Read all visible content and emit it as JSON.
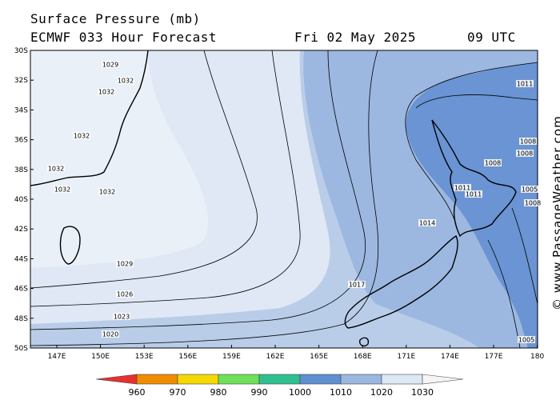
{
  "header": {
    "title": "Surface Pressure (mb)",
    "model": "ECMWF 033 Hour Forecast",
    "date": "Fri 02 May 2025",
    "time": "09 UTC"
  },
  "credit": "© www.PassageWeather.com",
  "axes": {
    "latitudes": [
      "30S",
      "32S",
      "34S",
      "36S",
      "38S",
      "40S",
      "42S",
      "44S",
      "46S",
      "48S",
      "50S"
    ],
    "longitudes": [
      "147E",
      "150E",
      "153E",
      "156E",
      "159E",
      "162E",
      "165E",
      "168E",
      "171E",
      "174E",
      "177E",
      "180"
    ]
  },
  "isobar_labels": [
    {
      "text": "1029",
      "id": "a"
    },
    {
      "text": "1032",
      "id": "b"
    },
    {
      "text": "1032",
      "id": "c"
    },
    {
      "text": "1032",
      "id": "d"
    },
    {
      "text": "1032",
      "id": "e"
    },
    {
      "text": "1032",
      "id": "f"
    },
    {
      "text": "1032",
      "id": "g"
    },
    {
      "text": "1029",
      "id": "h"
    },
    {
      "text": "1026",
      "id": "i"
    },
    {
      "text": "1023",
      "id": "j"
    },
    {
      "text": "1020",
      "id": "k"
    },
    {
      "text": "1011",
      "id": "l"
    },
    {
      "text": "1008",
      "id": "m"
    },
    {
      "text": "1008",
      "id": "n"
    },
    {
      "text": "1008",
      "id": "o"
    },
    {
      "text": "1011",
      "id": "p"
    },
    {
      "text": "1011",
      "id": "q"
    },
    {
      "text": "1014",
      "id": "r"
    },
    {
      "text": "1017",
      "id": "s"
    },
    {
      "text": "1005",
      "id": "t"
    },
    {
      "text": "1008",
      "id": "u"
    },
    {
      "text": "1005",
      "id": "v"
    }
  ],
  "color_scale": {
    "labels": [
      "960",
      "970",
      "980",
      "990",
      "1000",
      "1010",
      "1020",
      "1030"
    ],
    "colors": [
      "#e83030",
      "#f08c00",
      "#f5d800",
      "#6ee05a",
      "#30c090",
      "#5f8fd0",
      "#9ab7e0",
      "#dde8f5",
      "#f5f5f5"
    ]
  },
  "colors": {
    "pressure_1030_plus": "#eaf0f8",
    "pressure_1020_1030": "#dfe8f4",
    "pressure_1015_1020": "#b9cde9",
    "pressure_1010_1015": "#9cb8e0",
    "pressure_below_1010": "#6a94d3",
    "land_outline": "#000000"
  }
}
